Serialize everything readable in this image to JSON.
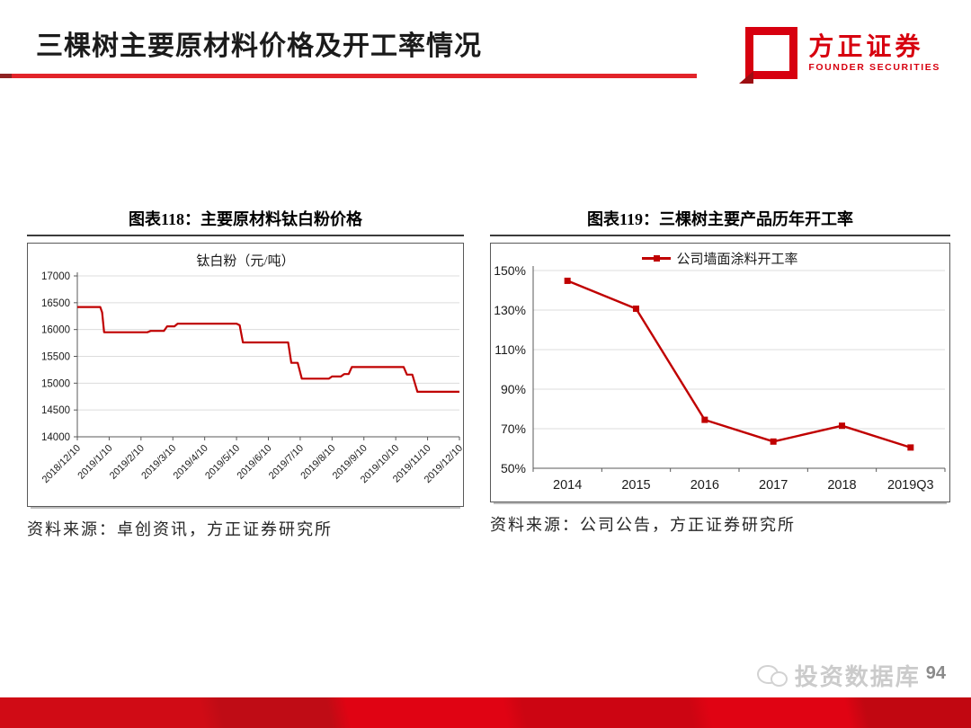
{
  "header": {
    "title": "三棵树主要原材料价格及开工率情况",
    "logo": {
      "name_cn": "方正证券",
      "name_en": "FOUNDER SECURITIES"
    }
  },
  "figures": {
    "left": {
      "caption": "图表118：主要原材料钛白粉价格",
      "source": "资料来源：卓创资讯，方正证券研究所"
    },
    "right": {
      "caption": "图表119：三棵树主要产品历年开工率",
      "source": "资料来源：公司公告，方正证券研究所"
    }
  },
  "footer": {
    "watermark": "投资数据库",
    "page_number": "94"
  },
  "colors": {
    "accent_red": "#e2242a",
    "logo_red": "#d7000f",
    "series_red": "#c00000",
    "grid_gray": "#dcdcdc",
    "axis_gray": "#595959"
  },
  "chart_data": [
    {
      "type": "line",
      "title": "钛白粉（元/吨）",
      "xlabel": "",
      "ylabel": "",
      "x_tick_labels": [
        "2018/12/10",
        "2019/1/10",
        "2019/2/10",
        "2019/3/10",
        "2019/4/10",
        "2019/5/10",
        "2019/6/10",
        "2019/7/10",
        "2019/8/10",
        "2019/9/10",
        "2019/10/10",
        "2019/11/10",
        "2019/12/10"
      ],
      "x_range": [
        0,
        12
      ],
      "ylim": [
        14000,
        17000
      ],
      "y_ticks": [
        14000,
        14500,
        15000,
        15500,
        16000,
        16500,
        17000
      ],
      "grid": "horizontal",
      "legend_position": "none",
      "series": [
        {
          "name": "钛白粉",
          "color": "#c00000",
          "points": [
            [
              0,
              16420
            ],
            [
              0.72,
              16420
            ],
            [
              0.78,
              16320
            ],
            [
              0.84,
              15950
            ],
            [
              2.2,
              15950
            ],
            [
              2.3,
              15975
            ],
            [
              2.72,
              15975
            ],
            [
              2.82,
              16060
            ],
            [
              3.05,
              16060
            ],
            [
              3.15,
              16110
            ],
            [
              5.0,
              16110
            ],
            [
              5.1,
              16080
            ],
            [
              5.2,
              15760
            ],
            [
              6.62,
              15760
            ],
            [
              6.72,
              15380
            ],
            [
              6.92,
              15380
            ],
            [
              7.05,
              15085
            ],
            [
              7.9,
              15085
            ],
            [
              8.0,
              15125
            ],
            [
              8.28,
              15125
            ],
            [
              8.38,
              15170
            ],
            [
              8.52,
              15170
            ],
            [
              8.62,
              15300
            ],
            [
              10.25,
              15300
            ],
            [
              10.35,
              15160
            ],
            [
              10.52,
              15160
            ],
            [
              10.68,
              14840
            ],
            [
              12,
              14840
            ]
          ]
        }
      ]
    },
    {
      "type": "line",
      "title": "",
      "legend": [
        "公司墙面涂料开工率"
      ],
      "legend_position": "top",
      "categories": [
        "2014",
        "2015",
        "2016",
        "2017",
        "2018",
        "2019Q3"
      ],
      "values": [
        144.8,
        130.7,
        74.5,
        63.5,
        71.5,
        60.5
      ],
      "ylim": [
        50,
        150
      ],
      "y_ticks": [
        50,
        70,
        90,
        110,
        130,
        150
      ],
      "y_tick_suffix": "%",
      "grid": "horizontal",
      "marker": "square"
    }
  ]
}
